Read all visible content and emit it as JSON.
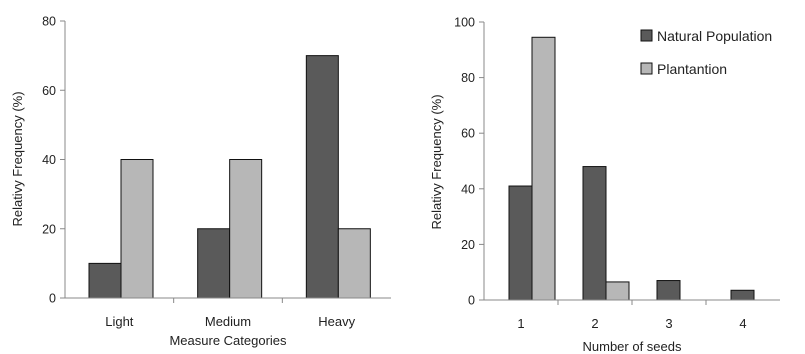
{
  "colors": {
    "natural": "#5a5a5a",
    "plantation": "#b7b7b7",
    "stroke": "#111111",
    "axis": "#888888"
  },
  "chart_data": [
    {
      "type": "bar",
      "categories": [
        "Light",
        "Medium",
        "Heavy"
      ],
      "series": [
        {
          "values": [
            10,
            20,
            70
          ]
        },
        {
          "values": [
            40,
            40,
            20
          ]
        }
      ],
      "xlabel": "Measure Categories",
      "ylabel": "Relativy Frequency  (%)",
      "ylim": [
        0,
        80
      ],
      "yticks": [
        0,
        20,
        40,
        60,
        80
      ],
      "grid": false,
      "legend": "none"
    },
    {
      "type": "bar",
      "categories": [
        "1",
        "2",
        "3",
        "4"
      ],
      "series": [
        {
          "name": "Natural Population",
          "values": [
            41,
            48,
            7,
            3.5
          ]
        },
        {
          "name": "Plantantion",
          "values": [
            94.5,
            6.5,
            0,
            0
          ]
        }
      ],
      "xlabel": "Number  of seeds",
      "ylabel": "Relativy Frequency  (%)",
      "ylim": [
        0,
        100
      ],
      "yticks": [
        0,
        20,
        40,
        60,
        80,
        100
      ],
      "grid": false,
      "legend": "top-right"
    }
  ]
}
